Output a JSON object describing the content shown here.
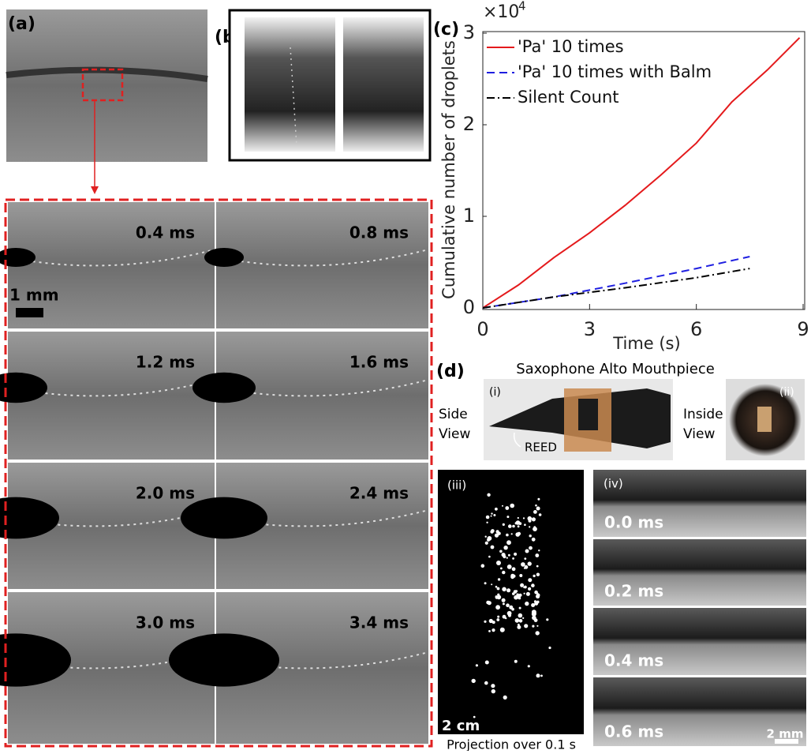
{
  "panels": {
    "a": {
      "label": "(a)",
      "frames": [
        "0.4 ms",
        "0.8 ms",
        "1.2 ms",
        "1.6 ms",
        "2.0 ms",
        "2.4 ms",
        "3.0 ms",
        "3.4 ms"
      ],
      "scale_bar": "1 mm"
    },
    "b": {
      "label": "(b)"
    },
    "c": {
      "label": "(c)"
    },
    "d": {
      "label": "(d)",
      "title": "Saxophone Alto Mouthpiece",
      "i": {
        "label": "(i)",
        "view": [
          "Side",
          "View"
        ],
        "annotation": "REED"
      },
      "ii": {
        "label": "(ii)",
        "view": [
          "Inside",
          "View"
        ]
      },
      "iii": {
        "label": "(iii)",
        "scale_bar": "2 cm",
        "caption": "Projection over 0.1 s"
      },
      "iv": {
        "label": "(iv)",
        "frames": [
          "0.0 ms",
          "0.2 ms",
          "0.4 ms",
          "0.6 ms"
        ],
        "scale_bar": "2 mm"
      }
    }
  },
  "chart_data": {
    "type": "line",
    "xlabel": "Time (s)",
    "ylabel": "Cumulative number of droplets",
    "y_multiplier": {
      "base": "×10",
      "exponent": "4"
    },
    "xlim": [
      0,
      9
    ],
    "ylim": [
      0,
      3
    ],
    "xticks": [
      0,
      3,
      6,
      9
    ],
    "yticks": [
      0,
      1,
      2,
      3
    ],
    "legend": "upper left",
    "series": [
      {
        "name": "'Pa' 10 times",
        "color": "#e41a1c",
        "dash": "solid",
        "x": [
          0,
          1,
          2,
          3,
          4,
          5,
          6,
          7,
          8,
          8.9
        ],
        "values": [
          0,
          0.25,
          0.55,
          0.82,
          1.12,
          1.45,
          1.8,
          2.25,
          2.6,
          2.95
        ]
      },
      {
        "name": "'Pa' 10 times with Balm",
        "color": "#1f1fe0",
        "dash": "dashed",
        "x": [
          0,
          2,
          4,
          6,
          7.5
        ],
        "values": [
          0,
          0.12,
          0.27,
          0.43,
          0.56
        ]
      },
      {
        "name": "Silent Count",
        "color": "#000000",
        "dash": "dashdot",
        "x": [
          0,
          2,
          4,
          6,
          7.5
        ],
        "values": [
          0,
          0.12,
          0.22,
          0.33,
          0.43
        ]
      }
    ]
  }
}
